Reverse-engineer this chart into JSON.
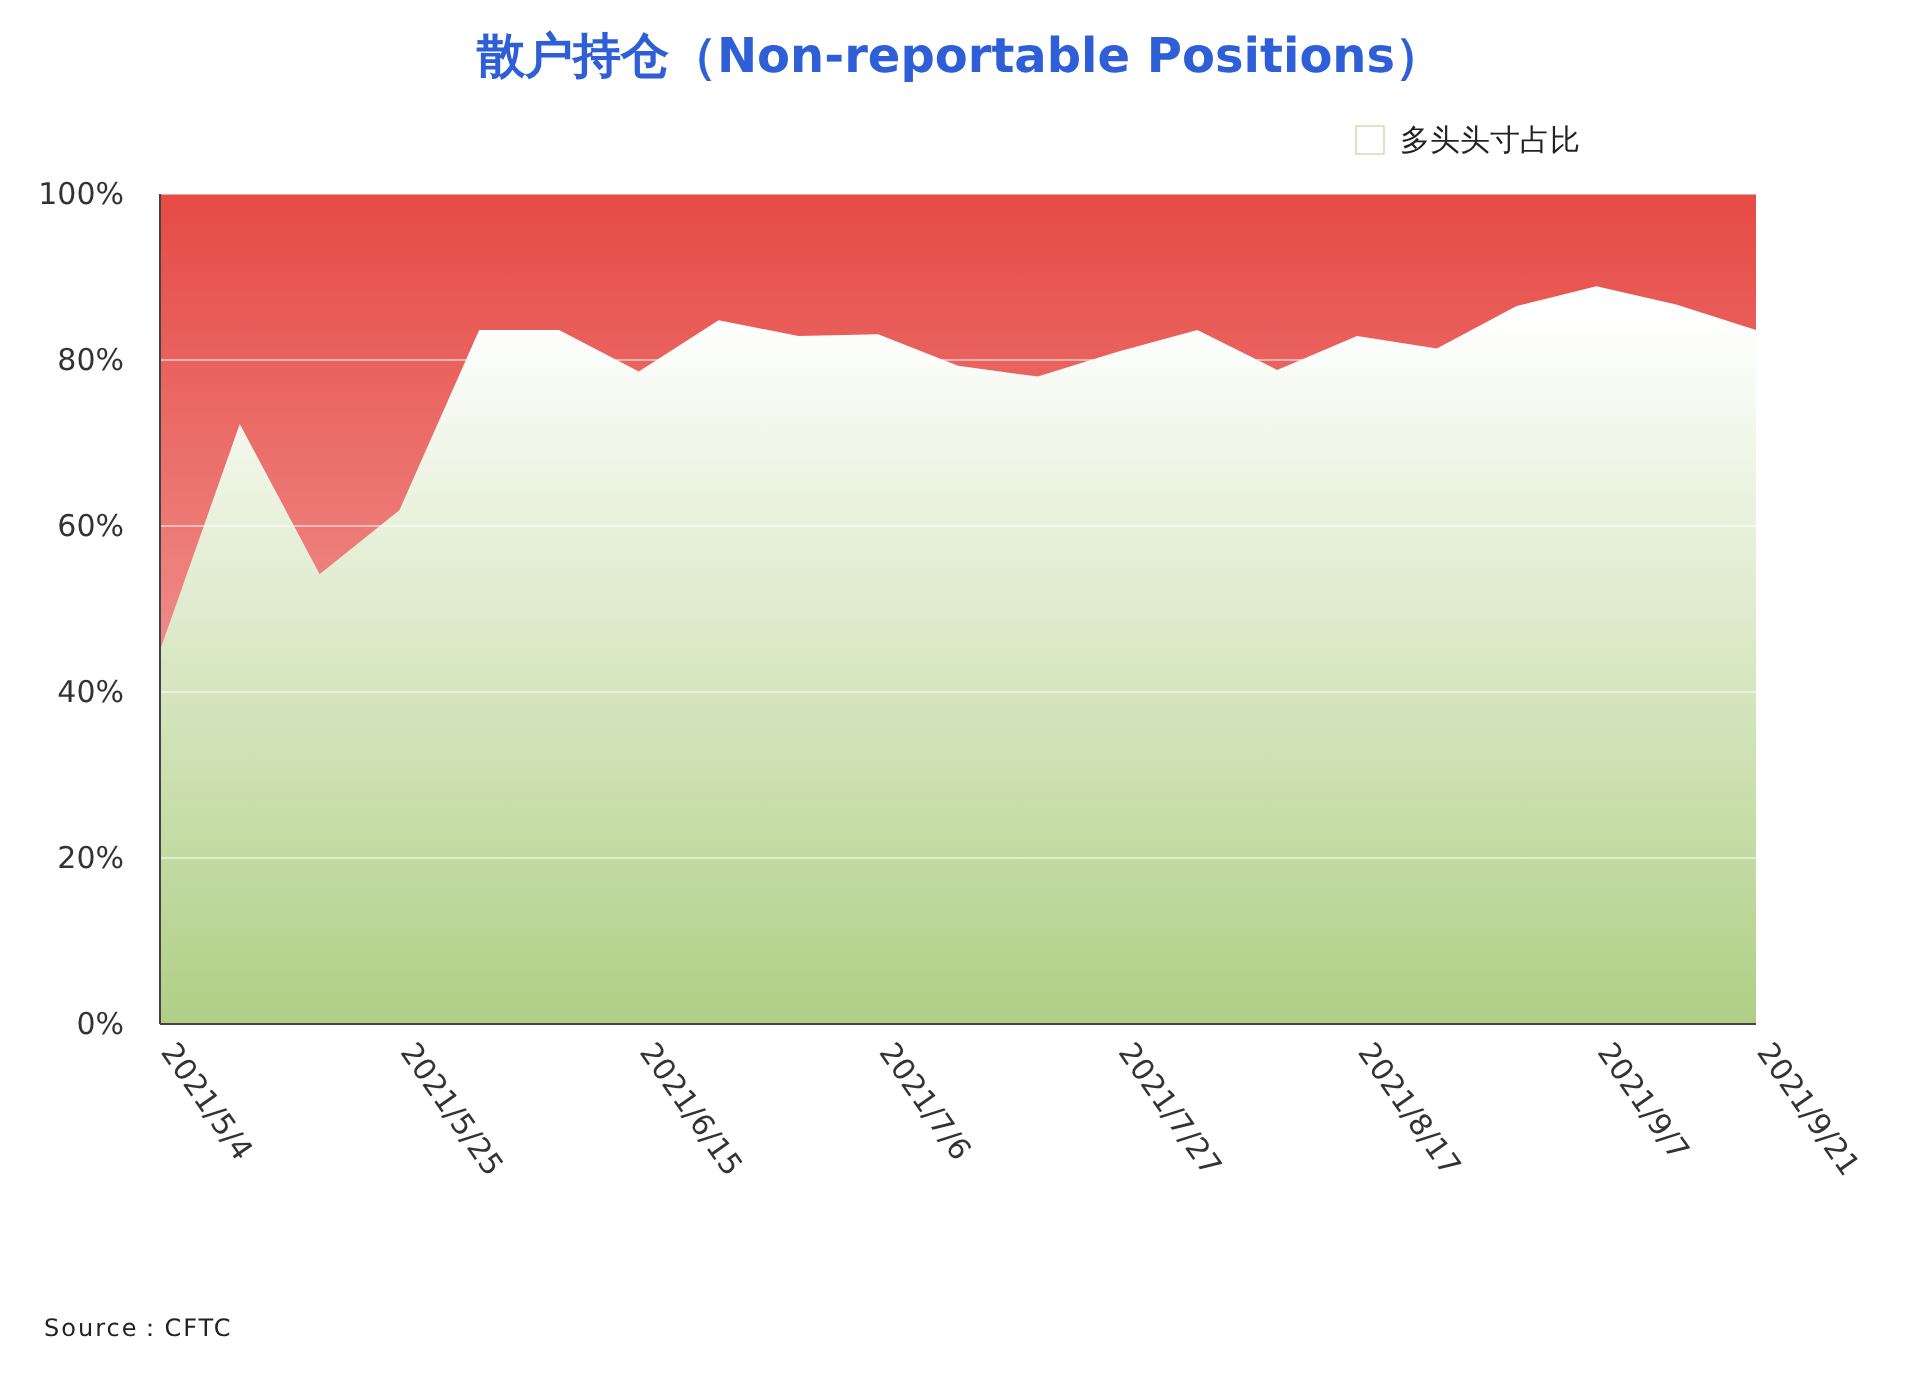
{
  "chart_data": {
    "type": "area",
    "title": "散户持仓（Non-reportable Positions）",
    "categories": [
      "2021/5/4",
      null,
      null,
      "2021/5/25",
      null,
      null,
      "2021/6/15",
      null,
      null,
      "2021/7/6",
      null,
      null,
      "2021/7/27",
      null,
      null,
      "2021/8/17",
      null,
      null,
      "2021/9/7",
      null,
      "2021/9/21"
    ],
    "stacked": true,
    "series": [
      {
        "name": "多头头寸占比",
        "color": "#b0cf85",
        "values": [
          45,
          72.3,
          54.2,
          61.9,
          83.6,
          83.6,
          78.6,
          84.8,
          82.9,
          83.1,
          79.3,
          78,
          81,
          83.6,
          78.8,
          82.9,
          81.4,
          86.5,
          88.9,
          86.7,
          83.6
        ]
      },
      {
        "color": "#e64a45",
        "values": [
          55,
          27.7,
          45.8,
          38.1,
          16.4,
          16.4,
          21.4,
          15.2,
          17.1,
          16.9,
          20.7,
          22,
          19,
          16.4,
          21.2,
          17.1,
          18.6,
          13.5,
          11.1,
          13.3,
          16.4
        ]
      }
    ],
    "ylim": [
      0,
      100
    ],
    "yticks": [
      {
        "value": 0,
        "label": "0%"
      },
      {
        "value": 20,
        "label": "20%"
      },
      {
        "value": 40,
        "label": "40%"
      },
      {
        "value": 60,
        "label": "60%"
      },
      {
        "value": 80,
        "label": "80%"
      },
      {
        "value": 100,
        "label": "100%"
      }
    ],
    "grid": "y",
    "legend": "top right",
    "annotations": [
      "Source：CFTC"
    ]
  }
}
